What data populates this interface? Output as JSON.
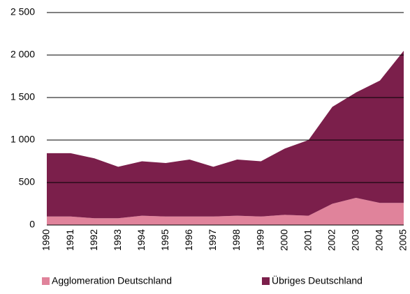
{
  "chart_data": {
    "type": "stacked_area",
    "categories": [
      "1990",
      "1991",
      "1992",
      "1993",
      "1994",
      "1995",
      "1996",
      "1997",
      "1998",
      "1999",
      "2000",
      "2001",
      "2002",
      "2003",
      "2004",
      "2005"
    ],
    "series": [
      {
        "name": "Agglomeration Deutschland",
        "color": "#e0839b",
        "values": [
          100,
          100,
          80,
          80,
          110,
          100,
          100,
          100,
          110,
          100,
          120,
          110,
          250,
          320,
          260,
          260
        ]
      },
      {
        "name": "Übriges Deutschland",
        "color": "#7b1f4b",
        "values": [
          745,
          745,
          705,
          605,
          640,
          630,
          670,
          585,
          660,
          650,
          780,
          890,
          1140,
          1240,
          1440,
          1790
        ]
      }
    ],
    "ylim": [
      0,
      2500
    ],
    "yticks": [
      0,
      500,
      {
        "value": 1000,
        "label": "1 000"
      },
      {
        "value": 1500,
        "label": "1 500"
      },
      {
        "value": 2000,
        "label": "2 000"
      },
      {
        "value": 2500,
        "label": "2 500"
      }
    ],
    "grid": true
  }
}
